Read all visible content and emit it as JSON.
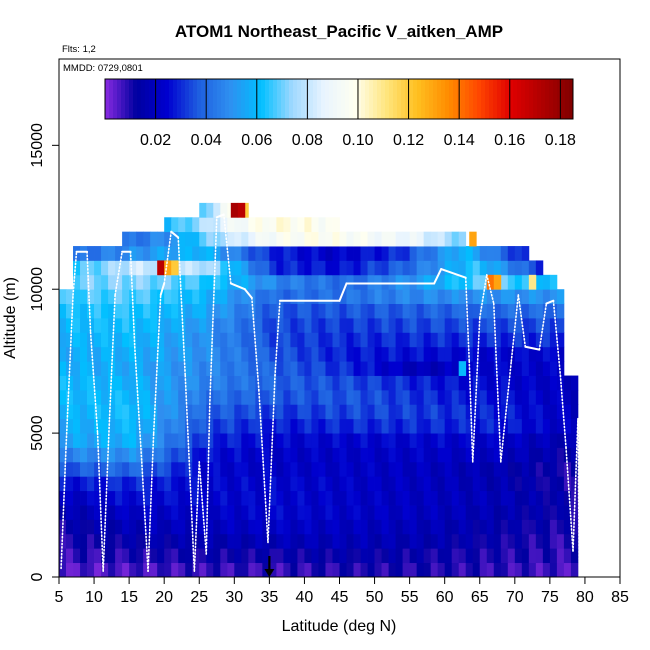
{
  "chart_data": {
    "type": "heatmap",
    "title": "ATOM1 Northeast_Pacific V_aitken_AMP",
    "flights_label": "Flts: 1,2",
    "mmdd_label": "MMDD: 0729,0801",
    "xlabel": "Latitude (deg N)",
    "ylabel": "Altitude (m)",
    "xlim": [
      5,
      85
    ],
    "ylim": [
      0,
      18000
    ],
    "x_ticks": [
      5,
      10,
      15,
      20,
      25,
      30,
      35,
      40,
      45,
      50,
      55,
      60,
      65,
      70,
      75,
      80,
      85
    ],
    "y_ticks": [
      0,
      5000,
      10000,
      15000
    ],
    "colorbar": {
      "min": 0.0,
      "max": 0.185,
      "ticks": [
        0.02,
        0.04,
        0.06,
        0.08,
        0.1,
        0.12,
        0.14,
        0.16,
        0.18
      ],
      "tick_labels": [
        "0.02",
        "0.04",
        "0.06",
        "0.08",
        "0.10",
        "0.12",
        "0.14",
        "0.16",
        "0.18"
      ],
      "colors": [
        "#8a2be2",
        "#0000a0",
        "#0000d0",
        "#1e5ee0",
        "#2f8ff0",
        "#00bfff",
        "#9fd8ff",
        "#e8f4ff",
        "#fffff0",
        "#ffe680",
        "#ffc020",
        "#ff8c00",
        "#ff4500",
        "#e00000",
        "#b00000",
        "#800000"
      ]
    },
    "marker_latitude": 35,
    "grid": false,
    "legend_position": "top",
    "altitude_bins": [
      {
        "alt": 250,
        "from": 5,
        "to": 79,
        "values": [
          0.005,
          0.006,
          0.008,
          0.008,
          0.01,
          0.01,
          0.008,
          0.006
        ]
      },
      {
        "alt": 750,
        "from": 5,
        "to": 79,
        "values": [
          0.008,
          0.01,
          0.012,
          0.012,
          0.014,
          0.012,
          0.01,
          0.008
        ]
      },
      {
        "alt": 1250,
        "from": 5,
        "to": 79,
        "values": [
          0.01,
          0.014,
          0.016,
          0.018,
          0.018,
          0.016,
          0.012,
          0.008
        ]
      },
      {
        "alt": 1750,
        "from": 5,
        "to": 79,
        "values": [
          0.012,
          0.018,
          0.02,
          0.022,
          0.02,
          0.018,
          0.014,
          0.01
        ]
      },
      {
        "alt": 2250,
        "from": 5,
        "to": 79,
        "values": [
          0.016,
          0.022,
          0.022,
          0.024,
          0.022,
          0.02,
          0.016,
          0.012
        ]
      },
      {
        "alt": 2750,
        "from": 5,
        "to": 79,
        "values": [
          0.02,
          0.026,
          0.024,
          0.024,
          0.022,
          0.02,
          0.018,
          0.012
        ]
      },
      {
        "alt": 3250,
        "from": 5,
        "to": 79,
        "values": [
          0.026,
          0.03,
          0.024,
          0.024,
          0.022,
          0.02,
          0.016,
          0.01
        ]
      },
      {
        "alt": 3750,
        "from": 5,
        "to": 79,
        "values": [
          0.036,
          0.04,
          0.024,
          0.022,
          0.022,
          0.02,
          0.016,
          0.01
        ]
      },
      {
        "alt": 4250,
        "from": 5,
        "to": 79,
        "values": [
          0.046,
          0.05,
          0.026,
          0.022,
          0.022,
          0.022,
          0.02,
          0.012
        ]
      },
      {
        "alt": 4750,
        "from": 5,
        "to": 79,
        "values": [
          0.054,
          0.058,
          0.03,
          0.024,
          0.024,
          0.024,
          0.022,
          0.016
        ]
      },
      {
        "alt": 5250,
        "from": 5,
        "to": 79,
        "values": [
          0.056,
          0.06,
          0.034,
          0.028,
          0.03,
          0.03,
          0.028,
          0.02
        ]
      },
      {
        "alt": 5750,
        "from": 5,
        "to": 79,
        "values": [
          0.058,
          0.062,
          0.038,
          0.032,
          0.034,
          0.032,
          0.028,
          0.02
        ]
      },
      {
        "alt": 6250,
        "from": 5,
        "to": 79,
        "values": [
          0.06,
          0.06,
          0.042,
          0.036,
          0.036,
          0.03,
          0.026,
          0.02
        ]
      },
      {
        "alt": 6750,
        "from": 5,
        "to": 79,
        "values": [
          0.06,
          0.058,
          0.046,
          0.038,
          0.034,
          0.028,
          0.024,
          0.02
        ]
      },
      {
        "alt": 7250,
        "from": 5,
        "to": 77,
        "values": [
          0.058,
          0.056,
          0.048,
          0.038,
          0.03,
          0.018,
          0.024,
          0.022
        ]
      },
      {
        "alt": 7750,
        "from": 5,
        "to": 77,
        "values": [
          0.056,
          0.058,
          0.05,
          0.036,
          0.028,
          0.026,
          0.024,
          0.024
        ]
      },
      {
        "alt": 8250,
        "from": 5,
        "to": 77,
        "values": [
          0.058,
          0.06,
          0.05,
          0.034,
          0.03,
          0.03,
          0.03,
          0.03
        ]
      },
      {
        "alt": 8750,
        "from": 5,
        "to": 77,
        "values": [
          0.06,
          0.062,
          0.052,
          0.034,
          0.032,
          0.034,
          0.034,
          0.034
        ]
      },
      {
        "alt": 9250,
        "from": 5,
        "to": 77,
        "values": [
          0.062,
          0.064,
          0.056,
          0.036,
          0.036,
          0.038,
          0.04,
          0.04
        ]
      },
      {
        "alt": 9750,
        "from": 5,
        "to": 77,
        "values": [
          0.066,
          0.068,
          0.06,
          0.04,
          0.042,
          0.048,
          0.05,
          0.05
        ]
      },
      {
        "alt": 10250,
        "from": 7,
        "to": 76,
        "values": [
          0.07,
          0.072,
          0.064,
          0.046,
          0.04,
          0.052,
          0.07,
          0.06
        ]
      },
      {
        "alt": 10750,
        "from": 7,
        "to": 74,
        "values": [
          0.064,
          0.082,
          0.078,
          0.03,
          0.026,
          0.04,
          0.064,
          0.03
        ]
      },
      {
        "alt": 11250,
        "from": 7,
        "to": 72,
        "values": [
          0.04,
          0.05,
          0.06,
          0.03,
          0.022,
          0.03,
          0.06,
          0.025
        ]
      },
      {
        "alt": 11750,
        "from": 14,
        "to": 63,
        "values": [
          0.04,
          0.05,
          0.076,
          0.094,
          0.098,
          0.094,
          0.088,
          0.07
        ]
      },
      {
        "alt": 12250,
        "from": 20,
        "to": 45,
        "values": [
          0.06,
          0.07,
          0.082,
          0.094,
          0.098,
          0.1,
          0.098,
          0.094
        ]
      },
      {
        "alt": 12750,
        "from": 25,
        "to": 32,
        "values": [
          0.06,
          0.07,
          0.08,
          0.088,
          0.092,
          0.1,
          0.11,
          0.13
        ]
      }
    ],
    "hotspots": [
      {
        "lat": 19.5,
        "alt": 10750,
        "value": 0.17
      },
      {
        "lat": 20.5,
        "alt": 10750,
        "value": 0.13
      },
      {
        "lat": 21.5,
        "alt": 10750,
        "value": 0.12
      },
      {
        "lat": 30.0,
        "alt": 12750,
        "value": 0.175
      },
      {
        "lat": 31.0,
        "alt": 12750,
        "value": 0.17
      },
      {
        "lat": 64.0,
        "alt": 11750,
        "value": 0.13
      },
      {
        "lat": 66.5,
        "alt": 10250,
        "value": 0.14
      },
      {
        "lat": 67.5,
        "alt": 10250,
        "value": 0.13
      },
      {
        "lat": 72.5,
        "alt": 10250,
        "value": 0.11
      },
      {
        "lat": 62.5,
        "alt": 7250,
        "value": 0.06
      }
    ],
    "flight_track": [
      {
        "lat": 5.3,
        "alt": 300
      },
      {
        "lat": 6.0,
        "alt": 4500
      },
      {
        "lat": 7.0,
        "alt": 9800
      },
      {
        "lat": 7.5,
        "alt": 11300
      },
      {
        "lat": 9.0,
        "alt": 11300
      },
      {
        "lat": 9.5,
        "alt": 8500
      },
      {
        "lat": 10.5,
        "alt": 5000
      },
      {
        "lat": 11.3,
        "alt": 200
      },
      {
        "lat": 12.2,
        "alt": 5500
      },
      {
        "lat": 13.0,
        "alt": 9800
      },
      {
        "lat": 14.0,
        "alt": 11300
      },
      {
        "lat": 15.2,
        "alt": 11300
      },
      {
        "lat": 15.8,
        "alt": 8000
      },
      {
        "lat": 16.8,
        "alt": 4000
      },
      {
        "lat": 17.7,
        "alt": 200
      },
      {
        "lat": 18.5,
        "alt": 5000
      },
      {
        "lat": 19.5,
        "alt": 9800
      },
      {
        "lat": 20.0,
        "alt": 10200
      },
      {
        "lat": 21.0,
        "alt": 12000
      },
      {
        "lat": 22.0,
        "alt": 11800
      },
      {
        "lat": 23.0,
        "alt": 7000
      },
      {
        "lat": 24.3,
        "alt": 200
      },
      {
        "lat": 25.0,
        "alt": 4000
      },
      {
        "lat": 26.0,
        "alt": 800
      },
      {
        "lat": 26.5,
        "alt": 6000
      },
      {
        "lat": 27.5,
        "alt": 12500
      },
      {
        "lat": 28.5,
        "alt": 12600
      },
      {
        "lat": 29.5,
        "alt": 10200
      },
      {
        "lat": 31.5,
        "alt": 10000
      },
      {
        "lat": 32.5,
        "alt": 9700
      },
      {
        "lat": 33.5,
        "alt": 6500
      },
      {
        "lat": 34.8,
        "alt": 1200
      },
      {
        "lat": 35.8,
        "alt": 7000
      },
      {
        "lat": 36.5,
        "alt": 9600
      },
      {
        "lat": 45.0,
        "alt": 9600
      },
      {
        "lat": 46.0,
        "alt": 10200
      },
      {
        "lat": 58.5,
        "alt": 10200
      },
      {
        "lat": 59.5,
        "alt": 10700
      },
      {
        "lat": 63.0,
        "alt": 10400
      },
      {
        "lat": 63.5,
        "alt": 7500
      },
      {
        "lat": 64.0,
        "alt": 4000
      },
      {
        "lat": 65.0,
        "alt": 9000
      },
      {
        "lat": 66.0,
        "alt": 10500
      },
      {
        "lat": 67.0,
        "alt": 9500
      },
      {
        "lat": 68.0,
        "alt": 4000
      },
      {
        "lat": 69.5,
        "alt": 7500
      },
      {
        "lat": 70.5,
        "alt": 9800
      },
      {
        "lat": 71.5,
        "alt": 8000
      },
      {
        "lat": 73.5,
        "alt": 7900
      },
      {
        "lat": 74.5,
        "alt": 9500
      },
      {
        "lat": 75.5,
        "alt": 9600
      },
      {
        "lat": 76.5,
        "alt": 7000
      },
      {
        "lat": 77.3,
        "alt": 4500
      },
      {
        "lat": 78.3,
        "alt": 900
      },
      {
        "lat": 79.0,
        "alt": 5500
      },
      {
        "lat": 79.2,
        "alt": 200
      }
    ]
  }
}
